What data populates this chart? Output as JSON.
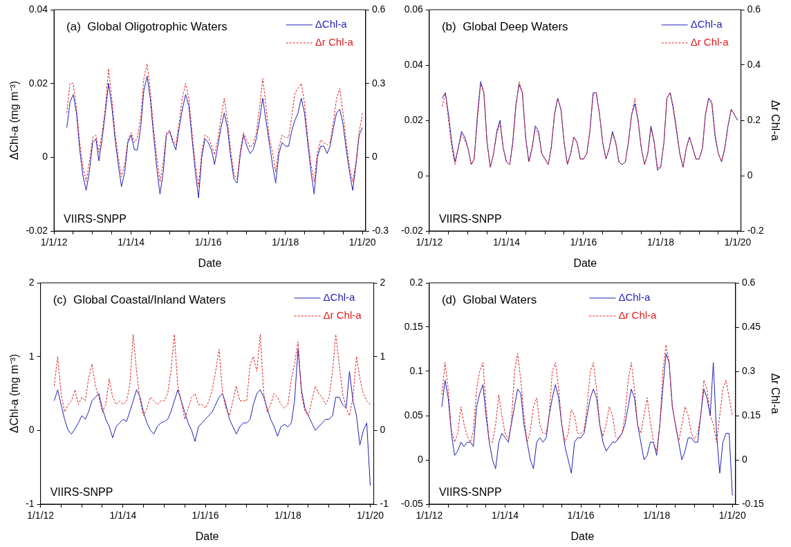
{
  "chart_data": [
    {
      "type": "line",
      "title": "(a)  Global Oligotrophic Waters",
      "xlabel": "Date",
      "ylabel": "ΔChl-a (mg m⁻³)",
      "annotations": [
        "VIIRS-SNPP"
      ],
      "legend": "top right",
      "grid": false,
      "marker": "none",
      "x": [
        "2012-05",
        "2012-06",
        "2012-07",
        "2012-08",
        "2012-09",
        "2012-10",
        "2012-11",
        "2012-12",
        "2013-01",
        "2013-02",
        "2013-03",
        "2013-04",
        "2013-05",
        "2013-06",
        "2013-07",
        "2013-08",
        "2013-09",
        "2013-10",
        "2013-11",
        "2013-12",
        "2014-01",
        "2014-02",
        "2014-03",
        "2014-04",
        "2014-05",
        "2014-06",
        "2014-07",
        "2014-08",
        "2014-09",
        "2014-10",
        "2014-11",
        "2014-12",
        "2015-01",
        "2015-02",
        "2015-03",
        "2015-04",
        "2015-05",
        "2015-06",
        "2015-07",
        "2015-08",
        "2015-09",
        "2015-10",
        "2015-11",
        "2015-12",
        "2016-01",
        "2016-02",
        "2016-03",
        "2016-04",
        "2016-05",
        "2016-06",
        "2016-07",
        "2016-08",
        "2016-09",
        "2016-10",
        "2016-11",
        "2016-12",
        "2017-01",
        "2017-02",
        "2017-03",
        "2017-04",
        "2017-05",
        "2017-06",
        "2017-07",
        "2017-08",
        "2017-09",
        "2017-10",
        "2017-11",
        "2017-12",
        "2018-01",
        "2018-02",
        "2018-03",
        "2018-04",
        "2018-05",
        "2018-06",
        "2018-07",
        "2018-08",
        "2018-09",
        "2018-10",
        "2018-11",
        "2018-12",
        "2019-01",
        "2019-02",
        "2019-03",
        "2019-04",
        "2019-05",
        "2019-06",
        "2019-07",
        "2019-08",
        "2019-09",
        "2019-10",
        "2019-11",
        "2019-12",
        "2020-01"
      ],
      "xlim": [
        "2012-01-01",
        "2020-02-01"
      ],
      "xticks": [
        {
          "value": "2012-01-01",
          "label": "1/1/12"
        },
        {
          "value": "2012-07-01",
          "label": null
        },
        {
          "value": "2013-01-01",
          "label": null
        },
        {
          "value": "2013-07-01",
          "label": null
        },
        {
          "value": "2014-01-01",
          "label": "1/1/14"
        },
        {
          "value": "2014-07-01",
          "label": null
        },
        {
          "value": "2015-01-01",
          "label": null
        },
        {
          "value": "2015-07-01",
          "label": null
        },
        {
          "value": "2016-01-01",
          "label": "1/1/16"
        },
        {
          "value": "2016-07-01",
          "label": null
        },
        {
          "value": "2017-01-01",
          "label": null
        },
        {
          "value": "2017-07-01",
          "label": null
        },
        {
          "value": "2018-01-01",
          "label": "1/1/18"
        },
        {
          "value": "2018-07-01",
          "label": null
        },
        {
          "value": "2019-01-01",
          "label": null
        },
        {
          "value": "2019-07-01",
          "label": null
        },
        {
          "value": "2020-01-01",
          "label": "1/1/20"
        }
      ],
      "ylim": [
        -0.02,
        0.04
      ],
      "yticks": [
        -0.02,
        0,
        0.02,
        0.04
      ],
      "y2lim": [
        -0.3,
        0.6
      ],
      "y2ticks": [
        -0.3,
        0,
        0.3,
        0.6
      ],
      "series": [
        {
          "name": "ΔChl-a",
          "color": "#1f1fb4",
          "line_style": "solid",
          "values": [
            0.008,
            0.015,
            0.017,
            0.012,
            0.002,
            -0.005,
            -0.009,
            -0.004,
            0.004,
            0.005,
            -0.001,
            0.005,
            0.012,
            0.02,
            0.014,
            0.005,
            -0.002,
            -0.008,
            -0.004,
            0.004,
            0.006,
            0.002,
            0.002,
            0.008,
            0.018,
            0.022,
            0.016,
            0.006,
            -0.003,
            -0.01,
            -0.004,
            0.006,
            0.007,
            0.004,
            0.002,
            0.008,
            0.013,
            0.017,
            0.014,
            0.005,
            -0.004,
            -0.011,
            0.0,
            0.005,
            0.004,
            0.002,
            -0.002,
            0.003,
            0.008,
            0.012,
            0.008,
            0.0,
            -0.006,
            -0.007,
            0.001,
            0.006,
            0.003,
            0.001,
            0.002,
            0.005,
            0.01,
            0.016,
            0.01,
            0.004,
            -0.002,
            -0.007,
            0.001,
            0.004,
            0.003,
            0.003,
            0.007,
            0.01,
            0.012,
            0.016,
            0.012,
            0.004,
            -0.004,
            -0.01,
            0.0,
            0.003,
            0.003,
            0.001,
            0.003,
            0.008,
            0.012,
            0.013,
            0.009,
            0.002,
            -0.004,
            -0.009,
            -0.002,
            0.006,
            0.008
          ]
        },
        {
          "name": "Δr Chl-a",
          "color": "#e31a1c",
          "line_style": "dashed",
          "axis": "y2",
          "values": [
            0.18,
            0.3,
            0.3,
            0.2,
            0.06,
            -0.04,
            -0.1,
            -0.02,
            0.08,
            0.09,
            0.02,
            0.1,
            0.2,
            0.36,
            0.24,
            0.1,
            0.0,
            -0.08,
            -0.03,
            0.07,
            0.1,
            0.06,
            0.08,
            0.16,
            0.32,
            0.38,
            0.27,
            0.12,
            0.0,
            -0.1,
            -0.02,
            0.1,
            0.11,
            0.07,
            0.05,
            0.14,
            0.24,
            0.3,
            0.24,
            0.1,
            -0.03,
            -0.12,
            0.02,
            0.09,
            0.08,
            0.05,
            0.01,
            0.07,
            0.16,
            0.24,
            0.15,
            0.03,
            -0.07,
            -0.09,
            0.03,
            0.1,
            0.07,
            0.04,
            0.05,
            0.1,
            0.2,
            0.32,
            0.21,
            0.08,
            0.02,
            -0.06,
            0.04,
            0.09,
            0.08,
            0.08,
            0.16,
            0.26,
            0.28,
            0.3,
            0.22,
            0.08,
            -0.03,
            -0.1,
            0.02,
            0.07,
            0.06,
            0.05,
            0.06,
            0.14,
            0.24,
            0.28,
            0.18,
            0.06,
            -0.04,
            -0.1,
            -0.02,
            0.1,
            0.18
          ]
        }
      ]
    },
    {
      "type": "line",
      "title": "(b)  Global Deep Waters",
      "xlabel": "Date",
      "y2label": "Δr Chl-a",
      "annotations": [
        "VIIRS-SNPP"
      ],
      "legend": "top right",
      "grid": false,
      "marker": "none",
      "x": [
        "2012-05",
        "2012-06",
        "2012-07",
        "2012-08",
        "2012-09",
        "2012-10",
        "2012-11",
        "2012-12",
        "2013-01",
        "2013-02",
        "2013-03",
        "2013-04",
        "2013-05",
        "2013-06",
        "2013-07",
        "2013-08",
        "2013-09",
        "2013-10",
        "2013-11",
        "2013-12",
        "2014-01",
        "2014-02",
        "2014-03",
        "2014-04",
        "2014-05",
        "2014-06",
        "2014-07",
        "2014-08",
        "2014-09",
        "2014-10",
        "2014-11",
        "2014-12",
        "2015-01",
        "2015-02",
        "2015-03",
        "2015-04",
        "2015-05",
        "2015-06",
        "2015-07",
        "2015-08",
        "2015-09",
        "2015-10",
        "2015-11",
        "2015-12",
        "2016-01",
        "2016-02",
        "2016-03",
        "2016-04",
        "2016-05",
        "2016-06",
        "2016-07",
        "2016-08",
        "2016-09",
        "2016-10",
        "2016-11",
        "2016-12",
        "2017-01",
        "2017-02",
        "2017-03",
        "2017-04",
        "2017-05",
        "2017-06",
        "2017-07",
        "2017-08",
        "2017-09",
        "2017-10",
        "2017-11",
        "2017-12",
        "2018-01",
        "2018-02",
        "2018-03",
        "2018-04",
        "2018-05",
        "2018-06",
        "2018-07",
        "2018-08",
        "2018-09",
        "2018-10",
        "2018-11",
        "2018-12",
        "2019-01",
        "2019-02",
        "2019-03",
        "2019-04",
        "2019-05",
        "2019-06",
        "2019-07",
        "2019-08",
        "2019-09",
        "2019-10",
        "2019-11",
        "2019-12",
        "2020-01"
      ],
      "xlim": [
        "2012-01-01",
        "2020-02-01"
      ],
      "xticks": [
        {
          "value": "2012-01-01",
          "label": "1/1/12"
        },
        {
          "value": "2012-07-01",
          "label": null
        },
        {
          "value": "2013-01-01",
          "label": null
        },
        {
          "value": "2013-07-01",
          "label": null
        },
        {
          "value": "2014-01-01",
          "label": "1/1/14"
        },
        {
          "value": "2014-07-01",
          "label": null
        },
        {
          "value": "2015-01-01",
          "label": null
        },
        {
          "value": "2015-07-01",
          "label": null
        },
        {
          "value": "2016-01-01",
          "label": "1/1/16"
        },
        {
          "value": "2016-07-01",
          "label": null
        },
        {
          "value": "2017-01-01",
          "label": null
        },
        {
          "value": "2017-07-01",
          "label": null
        },
        {
          "value": "2018-01-01",
          "label": "1/1/18"
        },
        {
          "value": "2018-07-01",
          "label": null
        },
        {
          "value": "2019-01-01",
          "label": null
        },
        {
          "value": "2019-07-01",
          "label": null
        },
        {
          "value": "2020-01-01",
          "label": "1/1/20"
        }
      ],
      "ylim": [
        -0.02,
        0.06
      ],
      "yticks": [
        -0.02,
        0,
        0.02,
        0.04,
        0.06
      ],
      "y2lim": [
        -0.2,
        0.6
      ],
      "y2ticks": [
        -0.2,
        0,
        0.2,
        0.4,
        0.6
      ],
      "series": [
        {
          "name": "ΔChl-a",
          "color": "#1f1fb4",
          "line_style": "solid",
          "values": [
            0.028,
            0.03,
            0.022,
            0.012,
            0.005,
            0.01,
            0.016,
            0.014,
            0.01,
            0.004,
            0.006,
            0.022,
            0.034,
            0.03,
            0.012,
            0.003,
            0.008,
            0.016,
            0.02,
            0.01,
            0.005,
            0.004,
            0.012,
            0.026,
            0.033,
            0.03,
            0.014,
            0.005,
            0.01,
            0.018,
            0.016,
            0.008,
            0.006,
            0.004,
            0.01,
            0.022,
            0.028,
            0.024,
            0.012,
            0.004,
            0.008,
            0.014,
            0.012,
            0.006,
            0.006,
            0.008,
            0.016,
            0.03,
            0.03,
            0.022,
            0.012,
            0.006,
            0.01,
            0.016,
            0.012,
            0.005,
            0.004,
            0.005,
            0.012,
            0.022,
            0.026,
            0.02,
            0.01,
            0.004,
            0.008,
            0.018,
            0.012,
            0.002,
            0.003,
            0.012,
            0.028,
            0.03,
            0.024,
            0.016,
            0.008,
            0.003,
            0.01,
            0.014,
            0.01,
            0.006,
            0.006,
            0.01,
            0.022,
            0.028,
            0.026,
            0.014,
            0.008,
            0.005,
            0.01,
            0.018,
            0.024,
            0.022,
            0.02
          ]
        },
        {
          "name": "Δr Chl-a",
          "color": "#e31a1c",
          "line_style": "dashed",
          "axis": "y2",
          "values": [
            0.25,
            0.3,
            0.2,
            0.1,
            0.04,
            0.1,
            0.15,
            0.13,
            0.1,
            0.04,
            0.06,
            0.2,
            0.33,
            0.3,
            0.12,
            0.03,
            0.08,
            0.15,
            0.19,
            0.1,
            0.05,
            0.04,
            0.11,
            0.25,
            0.34,
            0.3,
            0.14,
            0.05,
            0.1,
            0.17,
            0.15,
            0.08,
            0.06,
            0.04,
            0.1,
            0.22,
            0.28,
            0.24,
            0.12,
            0.04,
            0.08,
            0.14,
            0.12,
            0.06,
            0.06,
            0.08,
            0.16,
            0.29,
            0.3,
            0.22,
            0.12,
            0.06,
            0.1,
            0.15,
            0.12,
            0.05,
            0.04,
            0.05,
            0.12,
            0.22,
            0.28,
            0.2,
            0.1,
            0.04,
            0.08,
            0.17,
            0.12,
            0.03,
            0.03,
            0.12,
            0.28,
            0.3,
            0.25,
            0.17,
            0.08,
            0.03,
            0.1,
            0.14,
            0.1,
            0.06,
            0.06,
            0.1,
            0.22,
            0.28,
            0.27,
            0.15,
            0.08,
            0.05,
            0.1,
            0.18,
            0.24,
            0.22,
            0.2
          ]
        }
      ]
    },
    {
      "type": "line",
      "title": "(c)  Global Coastal/Inland Waters",
      "xlabel": "Date",
      "ylabel": "ΔChl-a (mg m⁻³)",
      "annotations": [
        "VIIRS-SNPP"
      ],
      "legend": "top right",
      "grid": false,
      "marker": "none",
      "x": [
        "2012-05",
        "2012-06",
        "2012-07",
        "2012-08",
        "2012-09",
        "2012-10",
        "2012-11",
        "2012-12",
        "2013-01",
        "2013-02",
        "2013-03",
        "2013-04",
        "2013-05",
        "2013-06",
        "2013-07",
        "2013-08",
        "2013-09",
        "2013-10",
        "2013-11",
        "2013-12",
        "2014-01",
        "2014-02",
        "2014-03",
        "2014-04",
        "2014-05",
        "2014-06",
        "2014-07",
        "2014-08",
        "2014-09",
        "2014-10",
        "2014-11",
        "2014-12",
        "2015-01",
        "2015-02",
        "2015-03",
        "2015-04",
        "2015-05",
        "2015-06",
        "2015-07",
        "2015-08",
        "2015-09",
        "2015-10",
        "2015-11",
        "2015-12",
        "2016-01",
        "2016-02",
        "2016-03",
        "2016-04",
        "2016-05",
        "2016-06",
        "2016-07",
        "2016-08",
        "2016-09",
        "2016-10",
        "2016-11",
        "2016-12",
        "2017-01",
        "2017-02",
        "2017-03",
        "2017-04",
        "2017-05",
        "2017-06",
        "2017-07",
        "2017-08",
        "2017-09",
        "2017-10",
        "2017-11",
        "2017-12",
        "2018-01",
        "2018-02",
        "2018-03",
        "2018-04",
        "2018-05",
        "2018-06",
        "2018-07",
        "2018-08",
        "2018-09",
        "2018-10",
        "2018-11",
        "2018-12",
        "2019-01",
        "2019-02",
        "2019-03",
        "2019-04",
        "2019-05",
        "2019-06",
        "2019-07",
        "2019-08",
        "2019-09",
        "2019-10",
        "2019-11",
        "2019-12",
        "2020-01"
      ],
      "xlim": [
        "2012-01-01",
        "2020-02-01"
      ],
      "xticks": [
        {
          "value": "2012-01-01",
          "label": "1/1/12"
        },
        {
          "value": "2012-07-01",
          "label": null
        },
        {
          "value": "2013-01-01",
          "label": null
        },
        {
          "value": "2013-07-01",
          "label": null
        },
        {
          "value": "2014-01-01",
          "label": "1/1/14"
        },
        {
          "value": "2014-07-01",
          "label": null
        },
        {
          "value": "2015-01-01",
          "label": null
        },
        {
          "value": "2015-07-01",
          "label": null
        },
        {
          "value": "2016-01-01",
          "label": "1/1/16"
        },
        {
          "value": "2016-07-01",
          "label": null
        },
        {
          "value": "2017-01-01",
          "label": null
        },
        {
          "value": "2017-07-01",
          "label": null
        },
        {
          "value": "2018-01-01",
          "label": "1/1/18"
        },
        {
          "value": "2018-07-01",
          "label": null
        },
        {
          "value": "2019-01-01",
          "label": null
        },
        {
          "value": "2019-07-01",
          "label": null
        },
        {
          "value": "2020-01-01",
          "label": "1/1/20"
        }
      ],
      "ylim": [
        -1,
        2
      ],
      "yticks": [
        -1,
        0,
        1,
        2
      ],
      "y2lim": [
        -1,
        2
      ],
      "y2ticks": [
        -1,
        0,
        1,
        2
      ],
      "series": [
        {
          "name": "ΔChl-a",
          "color": "#1f1fb4",
          "line_style": "solid",
          "values": [
            0.4,
            0.55,
            0.35,
            0.15,
            0.0,
            -0.05,
            0.02,
            0.1,
            0.2,
            0.15,
            0.25,
            0.4,
            0.45,
            0.5,
            0.3,
            0.15,
            0.05,
            -0.1,
            0.05,
            0.1,
            0.15,
            0.12,
            0.25,
            0.4,
            0.55,
            0.45,
            0.25,
            0.1,
            0.0,
            -0.05,
            0.05,
            0.1,
            0.12,
            0.15,
            0.25,
            0.4,
            0.55,
            0.4,
            0.25,
            0.1,
            0.0,
            -0.15,
            0.05,
            0.1,
            0.15,
            0.2,
            0.25,
            0.35,
            0.45,
            0.5,
            0.35,
            0.15,
            0.05,
            -0.05,
            0.05,
            0.1,
            0.1,
            0.15,
            0.35,
            0.5,
            0.55,
            0.45,
            0.3,
            0.15,
            0.05,
            -0.08,
            0.05,
            0.08,
            0.05,
            0.1,
            0.4,
            1.1,
            0.55,
            0.3,
            0.2,
            0.1,
            0.0,
            0.05,
            0.1,
            0.15,
            0.15,
            0.2,
            0.45,
            0.45,
            0.35,
            0.3,
            0.8,
            0.4,
            0.2,
            -0.2,
            0.0,
            0.1,
            -0.75
          ]
        },
        {
          "name": "Δr Chl-a",
          "color": "#e31a1c",
          "line_style": "dashed",
          "axis": "y2",
          "values": [
            0.6,
            1.0,
            0.5,
            0.25,
            0.35,
            0.4,
            0.55,
            0.35,
            0.45,
            0.4,
            0.7,
            0.9,
            0.6,
            0.45,
            0.25,
            0.35,
            0.7,
            0.45,
            0.35,
            0.4,
            0.35,
            0.4,
            0.6,
            1.3,
            0.8,
            0.4,
            0.2,
            0.3,
            0.45,
            0.4,
            0.35,
            0.4,
            0.4,
            0.5,
            0.8,
            1.3,
            0.6,
            0.4,
            0.15,
            0.3,
            0.45,
            0.5,
            0.35,
            0.35,
            0.3,
            0.4,
            0.55,
            0.8,
            1.1,
            0.5,
            0.3,
            0.2,
            0.4,
            0.6,
            0.4,
            0.4,
            0.4,
            0.9,
            1.0,
            0.8,
            1.3,
            0.5,
            0.25,
            0.35,
            0.5,
            0.45,
            0.35,
            0.3,
            0.35,
            0.7,
            0.9,
            1.2,
            0.5,
            0.25,
            0.2,
            0.4,
            0.6,
            0.5,
            0.45,
            0.35,
            0.45,
            0.8,
            1.3,
            0.9,
            0.5,
            0.3,
            0.2,
            0.45,
            1.0,
            0.7,
            0.5,
            0.4,
            0.35
          ]
        }
      ]
    },
    {
      "type": "line",
      "title": "(d)  Global Waters",
      "xlabel": "Date",
      "y2label": "Δr Chl-a",
      "annotations": [
        "VIIRS-SNPP"
      ],
      "legend": "top",
      "grid": false,
      "marker": "none",
      "x": [
        "2012-05",
        "2012-06",
        "2012-07",
        "2012-08",
        "2012-09",
        "2012-10",
        "2012-11",
        "2012-12",
        "2013-01",
        "2013-02",
        "2013-03",
        "2013-04",
        "2013-05",
        "2013-06",
        "2013-07",
        "2013-08",
        "2013-09",
        "2013-10",
        "2013-11",
        "2013-12",
        "2014-01",
        "2014-02",
        "2014-03",
        "2014-04",
        "2014-05",
        "2014-06",
        "2014-07",
        "2014-08",
        "2014-09",
        "2014-10",
        "2014-11",
        "2014-12",
        "2015-01",
        "2015-02",
        "2015-03",
        "2015-04",
        "2015-05",
        "2015-06",
        "2015-07",
        "2015-08",
        "2015-09",
        "2015-10",
        "2015-11",
        "2015-12",
        "2016-01",
        "2016-02",
        "2016-03",
        "2016-04",
        "2016-05",
        "2016-06",
        "2016-07",
        "2016-08",
        "2016-09",
        "2016-10",
        "2016-11",
        "2016-12",
        "2017-01",
        "2017-02",
        "2017-03",
        "2017-04",
        "2017-05",
        "2017-06",
        "2017-07",
        "2017-08",
        "2017-09",
        "2017-10",
        "2017-11",
        "2017-12",
        "2018-01",
        "2018-02",
        "2018-03",
        "2018-04",
        "2018-05",
        "2018-06",
        "2018-07",
        "2018-08",
        "2018-09",
        "2018-10",
        "2018-11",
        "2018-12",
        "2019-01",
        "2019-02",
        "2019-03",
        "2019-04",
        "2019-05",
        "2019-06",
        "2019-07",
        "2019-08",
        "2019-09",
        "2019-10",
        "2019-11",
        "2019-12",
        "2020-01"
      ],
      "xlim": [
        "2012-01-01",
        "2020-02-01"
      ],
      "xticks": [
        {
          "value": "2012-01-01",
          "label": "1/1/12"
        },
        {
          "value": "2012-07-01",
          "label": null
        },
        {
          "value": "2013-01-01",
          "label": null
        },
        {
          "value": "2013-07-01",
          "label": null
        },
        {
          "value": "2014-01-01",
          "label": "1/1/14"
        },
        {
          "value": "2014-07-01",
          "label": null
        },
        {
          "value": "2015-01-01",
          "label": null
        },
        {
          "value": "2015-07-01",
          "label": null
        },
        {
          "value": "2016-01-01",
          "label": "1/1/16"
        },
        {
          "value": "2016-07-01",
          "label": null
        },
        {
          "value": "2017-01-01",
          "label": null
        },
        {
          "value": "2017-07-01",
          "label": null
        },
        {
          "value": "2018-01-01",
          "label": "1/1/18"
        },
        {
          "value": "2018-07-01",
          "label": null
        },
        {
          "value": "2019-01-01",
          "label": null
        },
        {
          "value": "2019-07-01",
          "label": null
        },
        {
          "value": "2020-01-01",
          "label": "1/1/20"
        }
      ],
      "ylim": [
        -0.05,
        0.2
      ],
      "yticks": [
        -0.05,
        0,
        0.05,
        0.1,
        0.15,
        0.2
      ],
      "y2lim": [
        -0.15,
        0.6
      ],
      "y2ticks": [
        -0.15,
        0,
        0.15,
        0.3,
        0.45,
        0.6
      ],
      "series": [
        {
          "name": "ΔChl-a",
          "color": "#1f1fb4",
          "line_style": "solid",
          "values": [
            0.06,
            0.09,
            0.07,
            0.03,
            0.005,
            0.01,
            0.02,
            0.015,
            0.02,
            0.02,
            0.015,
            0.06,
            0.075,
            0.085,
            0.05,
            0.02,
            0.0,
            -0.01,
            0.02,
            0.03,
            0.025,
            0.02,
            0.04,
            0.06,
            0.08,
            0.075,
            0.04,
            0.02,
            0.0,
            -0.01,
            0.02,
            0.025,
            0.02,
            0.025,
            0.05,
            0.07,
            0.085,
            0.07,
            0.04,
            0.015,
            0.0,
            -0.015,
            0.02,
            0.025,
            0.025,
            0.03,
            0.05,
            0.07,
            0.08,
            0.07,
            0.04,
            0.02,
            0.01,
            0.015,
            0.02,
            0.02,
            0.025,
            0.03,
            0.04,
            0.06,
            0.08,
            0.07,
            0.04,
            0.02,
            0.0,
            0.005,
            0.02,
            0.02,
            0.005,
            0.04,
            0.08,
            0.12,
            0.11,
            0.06,
            0.04,
            0.02,
            0.0,
            0.01,
            0.025,
            0.025,
            0.02,
            0.02,
            0.05,
            0.08,
            0.07,
            0.05,
            0.11,
            0.03,
            -0.015,
            0.02,
            0.03,
            0.03,
            -0.04
          ]
        },
        {
          "name": "Δr Chl-a",
          "color": "#e31a1c",
          "line_style": "dashed",
          "axis": "y2",
          "values": [
            0.22,
            0.33,
            0.24,
            0.1,
            0.06,
            0.09,
            0.18,
            0.12,
            0.08,
            0.06,
            0.1,
            0.24,
            0.3,
            0.33,
            0.18,
            0.06,
            0.06,
            0.12,
            0.22,
            0.15,
            0.09,
            0.07,
            0.12,
            0.3,
            0.36,
            0.27,
            0.15,
            0.06,
            0.1,
            0.18,
            0.21,
            0.12,
            0.09,
            0.09,
            0.15,
            0.3,
            0.33,
            0.24,
            0.12,
            0.06,
            0.09,
            0.17,
            0.15,
            0.09,
            0.09,
            0.1,
            0.18,
            0.3,
            0.33,
            0.24,
            0.12,
            0.08,
            0.12,
            0.18,
            0.15,
            0.08,
            0.07,
            0.09,
            0.15,
            0.27,
            0.33,
            0.24,
            0.12,
            0.09,
            0.15,
            0.21,
            0.13,
            0.06,
            0.03,
            0.12,
            0.3,
            0.39,
            0.33,
            0.18,
            0.12,
            0.06,
            0.12,
            0.18,
            0.15,
            0.09,
            0.07,
            0.09,
            0.15,
            0.27,
            0.24,
            0.15,
            0.12,
            0.06,
            0.15,
            0.24,
            0.27,
            0.21,
            0.15
          ]
        }
      ]
    }
  ]
}
